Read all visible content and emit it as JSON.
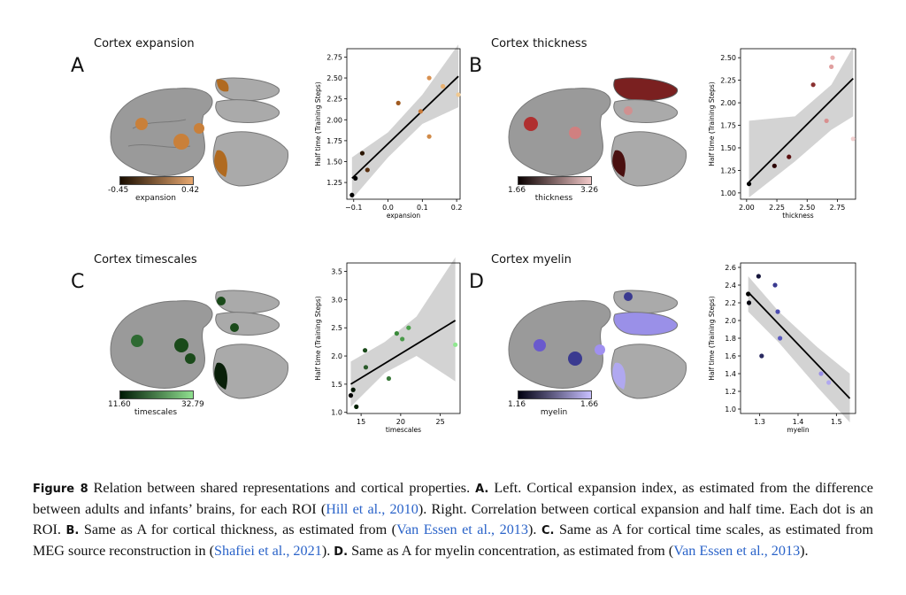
{
  "panels": [
    {
      "letter": "A",
      "title": "Cortex expansion",
      "cbar_min": "-0.45",
      "cbar_max": "0.42",
      "cbar_label": "expansion",
      "colors": [
        "#1a0d00",
        "#e8a870"
      ],
      "highlight": "#c9803a"
    },
    {
      "letter": "B",
      "title": "Cortex thickness",
      "cbar_min": "1.66",
      "cbar_max": "3.26",
      "cbar_label": "thickness",
      "colors": [
        "#0a0000",
        "#f2c8c8"
      ],
      "highlight": "#8a1e1e"
    },
    {
      "letter": "C",
      "title": "Cortex timescales",
      "cbar_min": "11.60",
      "cbar_max": "32.79",
      "cbar_label": "timescales",
      "colors": [
        "#001a06",
        "#8fe08f"
      ],
      "highlight": "#2e6a32"
    },
    {
      "letter": "D",
      "title": "Cortex myelin",
      "cbar_min": "1.16",
      "cbar_max": "1.66",
      "cbar_label": "myelin",
      "colors": [
        "#000010",
        "#c8c0ff"
      ],
      "highlight": "#6a5acd"
    }
  ],
  "chart_data": [
    {
      "type": "scatter",
      "xlabel": "expansion",
      "ylabel": "Half time (Training Steps)",
      "xlim": [
        -0.12,
        0.21
      ],
      "ylim": [
        1.05,
        2.85
      ],
      "xticks": [
        -0.1,
        0.0,
        0.1,
        0.2
      ],
      "xtick_labels": [
        "−0.1",
        "0.0",
        "0.1",
        "0.2"
      ],
      "yticks": [
        1.25,
        1.5,
        1.75,
        2.0,
        2.25,
        2.5,
        2.75
      ],
      "ytick_labels": [
        "1.25",
        "1.50",
        "1.75",
        "2.00",
        "2.25",
        "2.50",
        "2.75"
      ],
      "points": [
        {
          "x": -0.105,
          "y": 1.1,
          "c": "#000000"
        },
        {
          "x": -0.095,
          "y": 1.3,
          "c": "#000000"
        },
        {
          "x": -0.075,
          "y": 1.6,
          "c": "#2a1500"
        },
        {
          "x": -0.06,
          "y": 1.4,
          "c": "#5a3010"
        },
        {
          "x": 0.03,
          "y": 2.2,
          "c": "#a05a20"
        },
        {
          "x": 0.095,
          "y": 2.1,
          "c": "#c87a3a"
        },
        {
          "x": 0.12,
          "y": 1.8,
          "c": "#d08a48"
        },
        {
          "x": 0.12,
          "y": 2.5,
          "c": "#d89050"
        },
        {
          "x": 0.16,
          "y": 2.4,
          "c": "#e8b070"
        },
        {
          "x": 0.205,
          "y": 2.3,
          "c": "#f0c890"
        }
      ],
      "fit": {
        "x0": -0.105,
        "y0": 1.3,
        "x1": 0.205,
        "y1": 2.52
      },
      "ci_upper": [
        [
          -0.105,
          1.55
        ],
        [
          0.0,
          1.85
        ],
        [
          0.1,
          2.3
        ],
        [
          0.205,
          2.9
        ]
      ],
      "ci_lower": [
        [
          -0.105,
          1.05
        ],
        [
          0.0,
          1.55
        ],
        [
          0.1,
          1.95
        ],
        [
          0.205,
          2.15
        ]
      ]
    },
    {
      "type": "scatter",
      "xlabel": "thickness",
      "ylabel": "Half time (Training Steps)",
      "xlim": [
        1.95,
        2.9
      ],
      "ylim": [
        0.93,
        2.6
      ],
      "xticks": [
        2.0,
        2.25,
        2.5,
        2.75
      ],
      "xtick_labels": [
        "2.00",
        "2.25",
        "2.50",
        "2.75"
      ],
      "yticks": [
        1.0,
        1.25,
        1.5,
        1.75,
        2.0,
        2.25,
        2.5
      ],
      "ytick_labels": [
        "1.00",
        "1.25",
        "1.50",
        "1.75",
        "2.00",
        "2.25",
        "2.50"
      ],
      "points": [
        {
          "x": 2.02,
          "y": 1.1,
          "c": "#000000"
        },
        {
          "x": 2.23,
          "y": 1.3,
          "c": "#2a0000"
        },
        {
          "x": 2.35,
          "y": 1.4,
          "c": "#5a1010"
        },
        {
          "x": 2.55,
          "y": 2.2,
          "c": "#8a3030"
        },
        {
          "x": 2.66,
          "y": 1.8,
          "c": "#d89090"
        },
        {
          "x": 2.7,
          "y": 2.4,
          "c": "#e0a0a0"
        },
        {
          "x": 2.71,
          "y": 2.5,
          "c": "#e8b0b0"
        },
        {
          "x": 2.88,
          "y": 1.6,
          "c": "#f2d0d0"
        }
      ],
      "fit": {
        "x0": 2.02,
        "y0": 1.12,
        "x1": 2.88,
        "y1": 2.27
      },
      "ci_upper": [
        [
          2.02,
          1.8
        ],
        [
          2.4,
          1.85
        ],
        [
          2.7,
          2.2
        ],
        [
          2.88,
          2.62
        ]
      ],
      "ci_lower": [
        [
          2.02,
          0.95
        ],
        [
          2.4,
          1.35
        ],
        [
          2.7,
          1.7
        ],
        [
          2.88,
          1.85
        ]
      ]
    },
    {
      "type": "scatter",
      "xlabel": "timescales",
      "ylabel": "Half time (Training Steps)",
      "xlim": [
        13.2,
        27.5
      ],
      "ylim": [
        0.98,
        3.65
      ],
      "xticks": [
        15,
        20,
        25
      ],
      "xtick_labels": [
        "15",
        "20",
        "25"
      ],
      "yticks": [
        1.0,
        1.5,
        2.0,
        2.5,
        3.0,
        3.5
      ],
      "ytick_labels": [
        "1.0",
        "1.5",
        "2.0",
        "2.5",
        "3.0",
        "3.5"
      ],
      "points": [
        {
          "x": 13.7,
          "y": 1.3,
          "c": "#000000"
        },
        {
          "x": 14.0,
          "y": 1.4,
          "c": "#001500"
        },
        {
          "x": 14.4,
          "y": 1.1,
          "c": "#002000"
        },
        {
          "x": 15.5,
          "y": 2.1,
          "c": "#1a4a1a"
        },
        {
          "x": 15.6,
          "y": 1.8,
          "c": "#2a5a2a"
        },
        {
          "x": 18.5,
          "y": 1.6,
          "c": "#3a7a3a"
        },
        {
          "x": 19.5,
          "y": 2.4,
          "c": "#3a8a3a"
        },
        {
          "x": 20.2,
          "y": 2.3,
          "c": "#4a9a4a"
        },
        {
          "x": 21.0,
          "y": 2.5,
          "c": "#4aa04a"
        },
        {
          "x": 26.9,
          "y": 2.2,
          "c": "#90e890"
        }
      ],
      "fit": {
        "x0": 13.7,
        "y0": 1.5,
        "x1": 26.9,
        "y1": 2.63
      },
      "ci_upper": [
        [
          13.7,
          1.9
        ],
        [
          18,
          2.25
        ],
        [
          22,
          2.7
        ],
        [
          26.9,
          3.75
        ]
      ],
      "ci_lower": [
        [
          13.7,
          1.1
        ],
        [
          18,
          1.7
        ],
        [
          22,
          2.0
        ],
        [
          26.9,
          1.55
        ]
      ]
    },
    {
      "type": "scatter",
      "xlabel": "myelin",
      "ylabel": "Half time (Training Steps)",
      "xlim": [
        1.25,
        1.55
      ],
      "ylim": [
        0.95,
        2.65
      ],
      "xticks": [
        1.3,
        1.4,
        1.5
      ],
      "xtick_labels": [
        "1.3",
        "1.4",
        "1.5"
      ],
      "yticks": [
        1.0,
        1.2,
        1.4,
        1.6,
        1.8,
        2.0,
        2.2,
        2.4,
        2.6
      ],
      "ytick_labels": [
        "1.0",
        "1.2",
        "1.4",
        "1.6",
        "1.8",
        "2.0",
        "2.2",
        "2.4",
        "2.6"
      ],
      "points": [
        {
          "x": 1.27,
          "y": 2.3,
          "c": "#000000"
        },
        {
          "x": 1.272,
          "y": 2.2,
          "c": "#050510"
        },
        {
          "x": 1.297,
          "y": 2.5,
          "c": "#15153a"
        },
        {
          "x": 1.305,
          "y": 1.6,
          "c": "#2a2a60"
        },
        {
          "x": 1.34,
          "y": 2.4,
          "c": "#3a3a90"
        },
        {
          "x": 1.347,
          "y": 2.1,
          "c": "#4a4ab0"
        },
        {
          "x": 1.353,
          "y": 1.8,
          "c": "#5a5ac0"
        },
        {
          "x": 1.46,
          "y": 1.4,
          "c": "#9a90e8"
        },
        {
          "x": 1.48,
          "y": 1.3,
          "c": "#b0a8f0"
        }
      ],
      "fit": {
        "x0": 1.27,
        "y0": 2.32,
        "x1": 1.535,
        "y1": 1.12
      },
      "ci_upper": [
        [
          1.27,
          2.5
        ],
        [
          1.35,
          2.1
        ],
        [
          1.45,
          1.7
        ],
        [
          1.535,
          1.4
        ]
      ],
      "ci_lower": [
        [
          1.27,
          2.1
        ],
        [
          1.35,
          1.75
        ],
        [
          1.45,
          1.25
        ],
        [
          1.535,
          0.85
        ]
      ]
    }
  ],
  "caption": {
    "fig_label": "Figure 8",
    "t1": "  Relation between shared representations and cortical properties.  ",
    "a_label": "A.",
    "t2": " Left.  Cortical expansion index, as estimated from the difference between adults and infants’ brains, for each ROI (",
    "cite1": "Hill et al., 2010",
    "t3": "). Right. Correlation between cortical expansion and half time. Each dot is an ROI. ",
    "b_label": "B.",
    "t4": " Same as A for cortical thickness, as estimated from (",
    "cite2": "Van Essen et al., 2013",
    "t5": "). ",
    "c_label": "C.",
    "t6": " Same as A for cortical time scales, as estimated from MEG source reconstruction in (",
    "cite3": "Shafiei et al., 2021",
    "t7": "). ",
    "d_label": "D.",
    "t8": " Same as A for myelin concentration, as estimated from (",
    "cite4": "Van Essen et al., 2013",
    "t9": ")."
  }
}
